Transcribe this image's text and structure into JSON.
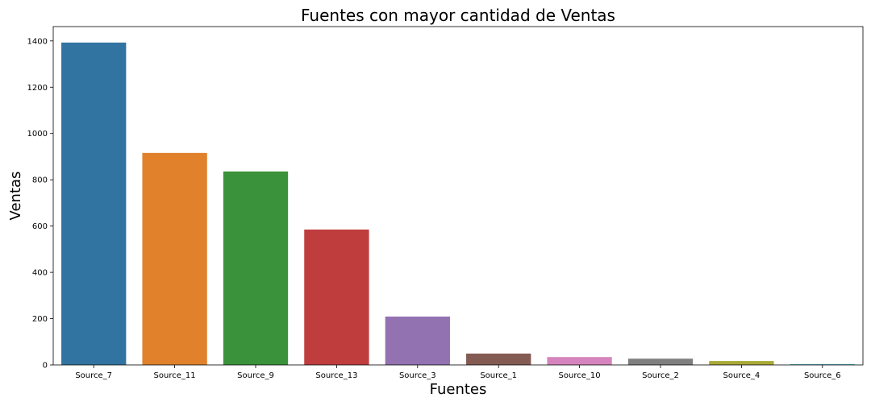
{
  "chart_data": {
    "type": "bar",
    "title": "Fuentes con mayor cantidad de Ventas",
    "xlabel": "Fuentes",
    "ylabel": "Ventas",
    "categories": [
      "Source_7",
      "Source_11",
      "Source_9",
      "Source_13",
      "Source_3",
      "Source_1",
      "Source_10",
      "Source_2",
      "Source_4",
      "Source_6"
    ],
    "values": [
      1393,
      916,
      836,
      585,
      209,
      49,
      34,
      27,
      17,
      3
    ],
    "colors": [
      "#3274a1",
      "#e1812c",
      "#3a923a",
      "#c03d3e",
      "#9372b2",
      "#845b53",
      "#d684bd",
      "#7f7f7f",
      "#a9aa35",
      "#2eb4c2"
    ],
    "yticks": [
      0,
      200,
      400,
      600,
      800,
      1000,
      1200,
      1400
    ],
    "ylim": [
      0,
      1462
    ],
    "grid": false,
    "legend": false
  }
}
